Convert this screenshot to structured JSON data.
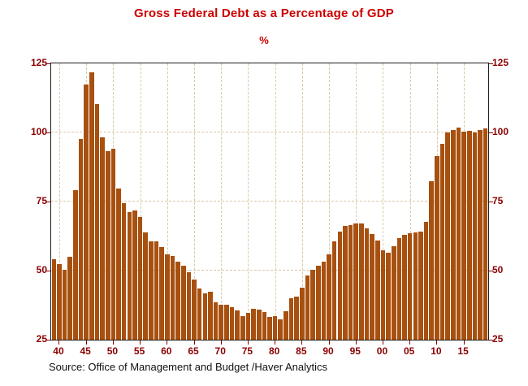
{
  "title": "Gross Federal Debt as a Percentage of GDP",
  "subtitle": "%",
  "source": "Source:  Office of Management and Budget /Haver Analytics",
  "colors": {
    "bar": "#a8500f",
    "axis_label": "#8b0000",
    "title": "#cc0000",
    "grid": "#d8c8a8",
    "frame": "#1a1a1a"
  },
  "chart_data": {
    "type": "bar",
    "title": "Gross Federal Debt as a Percentage of GDP",
    "ylabel": "%",
    "ylim": [
      25,
      125
    ],
    "yticks": [
      25,
      50,
      75,
      100,
      125
    ],
    "grid": "dashed; horizontal at 50/75/100, vertical at 5-year ticks",
    "legend": "none",
    "start_year": 1939,
    "years": [
      1939,
      1940,
      1941,
      1942,
      1943,
      1944,
      1945,
      1946,
      1947,
      1948,
      1949,
      1950,
      1951,
      1952,
      1953,
      1954,
      1955,
      1956,
      1957,
      1958,
      1959,
      1960,
      1961,
      1962,
      1963,
      1964,
      1965,
      1966,
      1967,
      1968,
      1969,
      1970,
      1971,
      1972,
      1973,
      1974,
      1975,
      1976,
      1977,
      1978,
      1979,
      1980,
      1981,
      1982,
      1983,
      1984,
      1985,
      1986,
      1987,
      1988,
      1989,
      1990,
      1991,
      1992,
      1993,
      1994,
      1995,
      1996,
      1997,
      1998,
      1999,
      2000,
      2001,
      2002,
      2003,
      2004,
      2005,
      2006,
      2007,
      2008,
      2009,
      2010,
      2011,
      2012,
      2013,
      2014,
      2015,
      2016,
      2017,
      2018,
      2019
    ],
    "values": [
      54.0,
      52.4,
      50.4,
      54.9,
      79.1,
      97.6,
      117.5,
      121.7,
      110.3,
      98.2,
      93.1,
      94.1,
      79.6,
      74.3,
      71.3,
      71.8,
      69.5,
      63.8,
      60.5,
      60.7,
      58.5,
      56.0,
      55.2,
      53.3,
      51.7,
      49.3,
      46.9,
      43.5,
      41.8,
      42.5,
      38.6,
      37.6,
      37.7,
      36.9,
      35.6,
      33.6,
      34.7,
      36.2,
      35.8,
      35.0,
      33.1,
      33.4,
      32.5,
      35.3,
      39.9,
      40.7,
      43.8,
      48.2,
      50.4,
      51.9,
      53.1,
      55.9,
      60.7,
      64.1,
      66.1,
      66.6,
      67.0,
      67.1,
      65.4,
      63.2,
      60.9,
      57.3,
      56.4,
      58.8,
      61.7,
      63.0,
      63.5,
      63.9,
      64.0,
      67.7,
      82.4,
      91.4,
      95.8,
      100.1,
      100.8,
      101.8,
      100.2,
      100.7,
      100.1,
      100.8,
      101.6
    ],
    "xticks": [
      {
        "year": 1940,
        "label": "40"
      },
      {
        "year": 1945,
        "label": "45"
      },
      {
        "year": 1950,
        "label": "50"
      },
      {
        "year": 1955,
        "label": "55"
      },
      {
        "year": 1960,
        "label": "60"
      },
      {
        "year": 1965,
        "label": "65"
      },
      {
        "year": 1970,
        "label": "70"
      },
      {
        "year": 1975,
        "label": "75"
      },
      {
        "year": 1980,
        "label": "80"
      },
      {
        "year": 1985,
        "label": "85"
      },
      {
        "year": 1990,
        "label": "90"
      },
      {
        "year": 1995,
        "label": "95"
      },
      {
        "year": 2000,
        "label": "00"
      },
      {
        "year": 2005,
        "label": "05"
      },
      {
        "year": 2010,
        "label": "10"
      },
      {
        "year": 2015,
        "label": "15"
      }
    ]
  }
}
